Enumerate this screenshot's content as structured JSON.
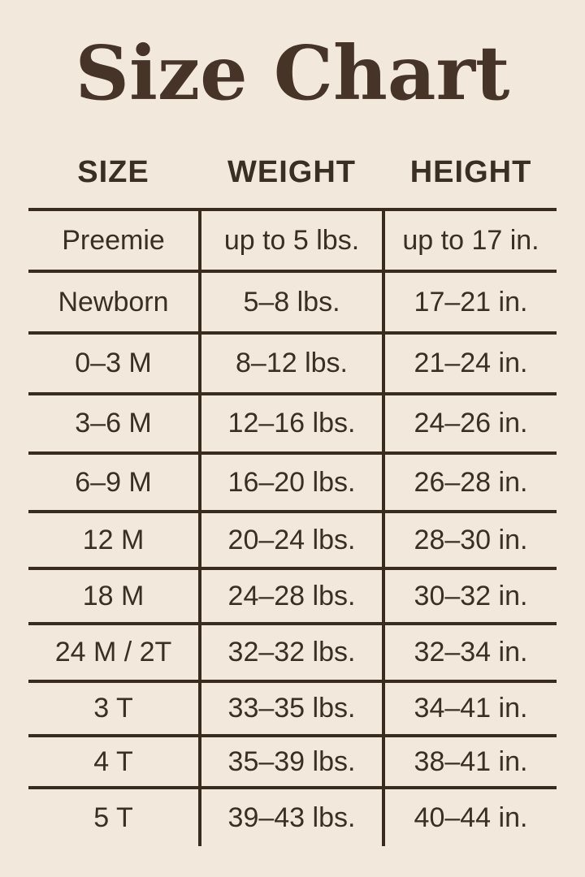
{
  "title": "Size Chart",
  "colors": {
    "background": "#f2e9dc",
    "text": "#3b2e22",
    "title_text": "#463429",
    "line": "#392c1f"
  },
  "chart_data": {
    "type": "table",
    "title": "Size Chart",
    "columns": [
      "SIZE",
      "WEIGHT",
      "HEIGHT"
    ],
    "rows": [
      [
        "Preemie",
        "up to 5 lbs.",
        "up to 17 in."
      ],
      [
        "Newborn",
        "5–8 lbs.",
        "17–21 in."
      ],
      [
        "0–3 M",
        "8–12 lbs.",
        "21–24 in."
      ],
      [
        "3–6 M",
        "12–16 lbs.",
        "24–26 in."
      ],
      [
        "6–9 M",
        "16–20 lbs.",
        "26–28 in."
      ],
      [
        "12 M",
        "20–24 lbs.",
        "28–30 in."
      ],
      [
        "18 M",
        "24–28 lbs.",
        "30–32 in."
      ],
      [
        "24 M / 2T",
        "32–32 lbs.",
        "32–34 in."
      ],
      [
        "3 T",
        "33–35 lbs.",
        "34–41 in."
      ],
      [
        "4 T",
        "35–39 lbs.",
        "38–41 in."
      ],
      [
        "5 T",
        "39–43 lbs.",
        "40–44 in."
      ]
    ],
    "layout": {
      "legend": "none",
      "grid": "horizontal rules between rows, vertical dividers between columns, no outer border"
    }
  }
}
